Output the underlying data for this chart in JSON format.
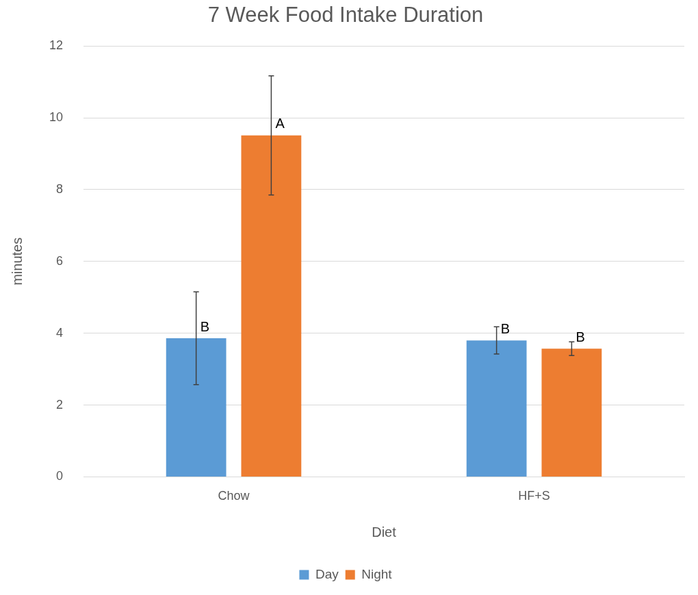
{
  "chart_data": {
    "type": "bar",
    "title": "7 Week Food Intake Duration",
    "xlabel": "Diet",
    "ylabel": "minutes",
    "categories": [
      "Chow",
      "HF+S"
    ],
    "series": [
      {
        "name": "Day",
        "color": "#5b9bd5",
        "values": [
          3.86,
          3.8
        ],
        "errors": [
          1.29,
          0.38
        ],
        "value_labels": [
          "B",
          "B"
        ]
      },
      {
        "name": "Night",
        "color": "#ed7d31",
        "values": [
          9.51,
          3.57
        ],
        "errors": [
          1.66,
          0.19
        ],
        "value_labels": [
          "A",
          "B"
        ]
      }
    ],
    "ylim": [
      0,
      12
    ],
    "yticks": [
      0,
      2,
      4,
      6,
      8,
      10,
      12
    ],
    "grid": "y",
    "legend": "bottom"
  }
}
